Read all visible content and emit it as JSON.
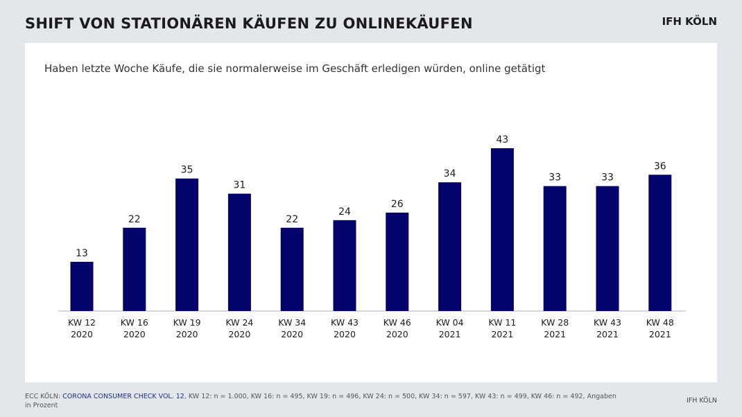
{
  "header": {
    "title": "SHIFT VON STATIONÄREN KÄUFEN ZU ONLINEKÄUFEN",
    "brand": "IFH KÖLN"
  },
  "footer": {
    "source_prefix": "ECC KÖLN: ",
    "source_highlight": "CORONA CONSUMER CHECK VOL. 12",
    "source_suffix": ", KW 12: n = 1.000, KW 16: n = 495, KW 19: n = 496, KW 24: n = 500, KW 34: n = 597, KW 43: n = 499, KW 46: n = 492, Angaben in Prozent",
    "brand": "IFH KÖLN"
  },
  "chart_data": {
    "type": "bar",
    "subtitle": "Haben letzte Woche Käufe, die sie normalerweise im Geschäft erledigen würden, online getätigt",
    "categories": [
      [
        "KW 12",
        "2020"
      ],
      [
        "KW 16",
        "2020"
      ],
      [
        "KW 19",
        "2020"
      ],
      [
        "KW 24",
        "2020"
      ],
      [
        "KW 34",
        "2020"
      ],
      [
        "KW 43",
        "2020"
      ],
      [
        "KW 46",
        "2020"
      ],
      [
        "KW 04",
        "2021"
      ],
      [
        "KW 11",
        "2021"
      ],
      [
        "KW 28",
        "2021"
      ],
      [
        "KW 43",
        "2021"
      ],
      [
        "KW 48",
        "2021"
      ]
    ],
    "values": [
      13,
      22,
      35,
      31,
      22,
      24,
      26,
      34,
      43,
      33,
      33,
      36
    ],
    "ylim": [
      0,
      43
    ],
    "grid": false,
    "legend": "none",
    "bar_color": "#03036b",
    "axis_color": "#bfbfbf"
  }
}
